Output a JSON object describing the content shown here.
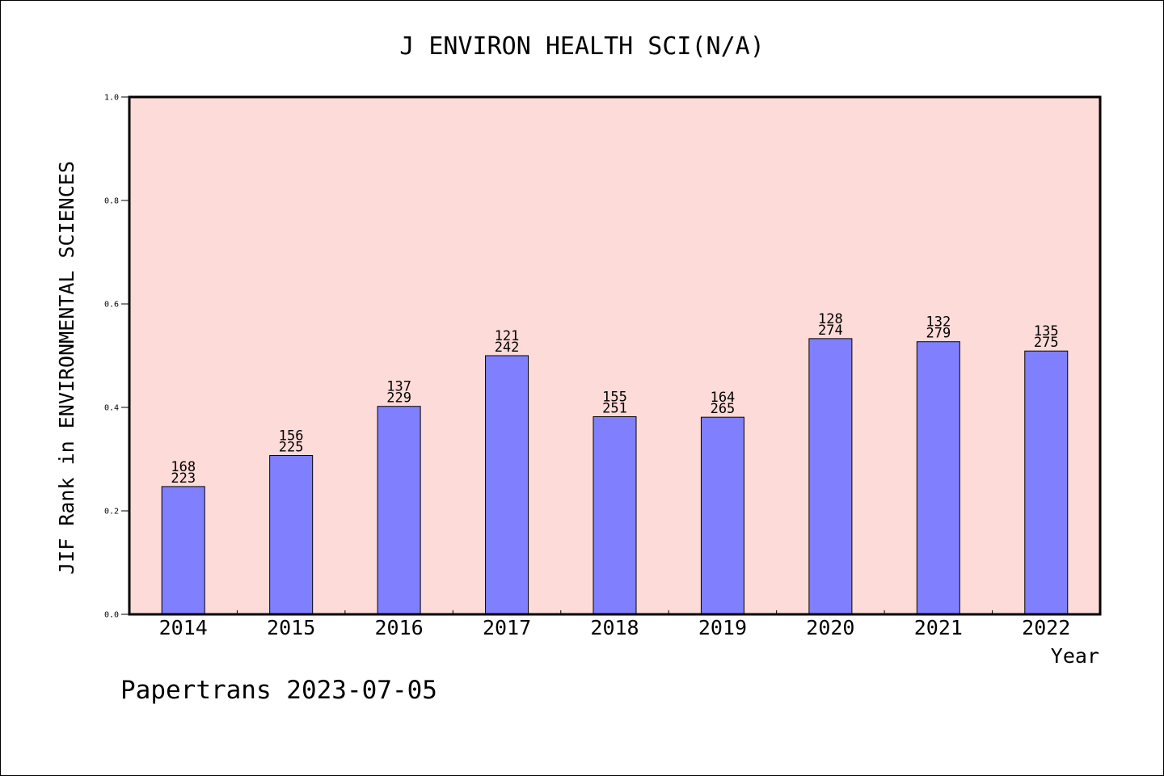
{
  "chart_data": {
    "type": "bar",
    "title": "J ENVIRON HEALTH SCI(N/A)",
    "xlabel": "Year",
    "ylabel": "JIF Rank in ENVIRONMENTAL SCIENCES",
    "ylim": [
      0,
      1.0
    ],
    "yticks": [
      "0.0",
      "0.2",
      "0.4",
      "0.6",
      "0.8",
      "1.0"
    ],
    "categories": [
      "2014",
      "2015",
      "2016",
      "2017",
      "2018",
      "2019",
      "2020",
      "2021",
      "2022"
    ],
    "values": [
      0.247,
      0.307,
      0.402,
      0.5,
      0.382,
      0.381,
      0.533,
      0.527,
      0.509
    ],
    "rank": [
      "168",
      "156",
      "137",
      "121",
      "155",
      "164",
      "128",
      "132",
      "135"
    ],
    "total": [
      "223",
      "225",
      "229",
      "242",
      "251",
      "265",
      "274",
      "279",
      "275"
    ],
    "grid": false,
    "legend": "none",
    "colors": {
      "bar": "#8080ff",
      "plot_background": "#fddbd8",
      "axis": "#000000"
    }
  },
  "footer": {
    "text": "Papertrans 2023-07-05"
  }
}
